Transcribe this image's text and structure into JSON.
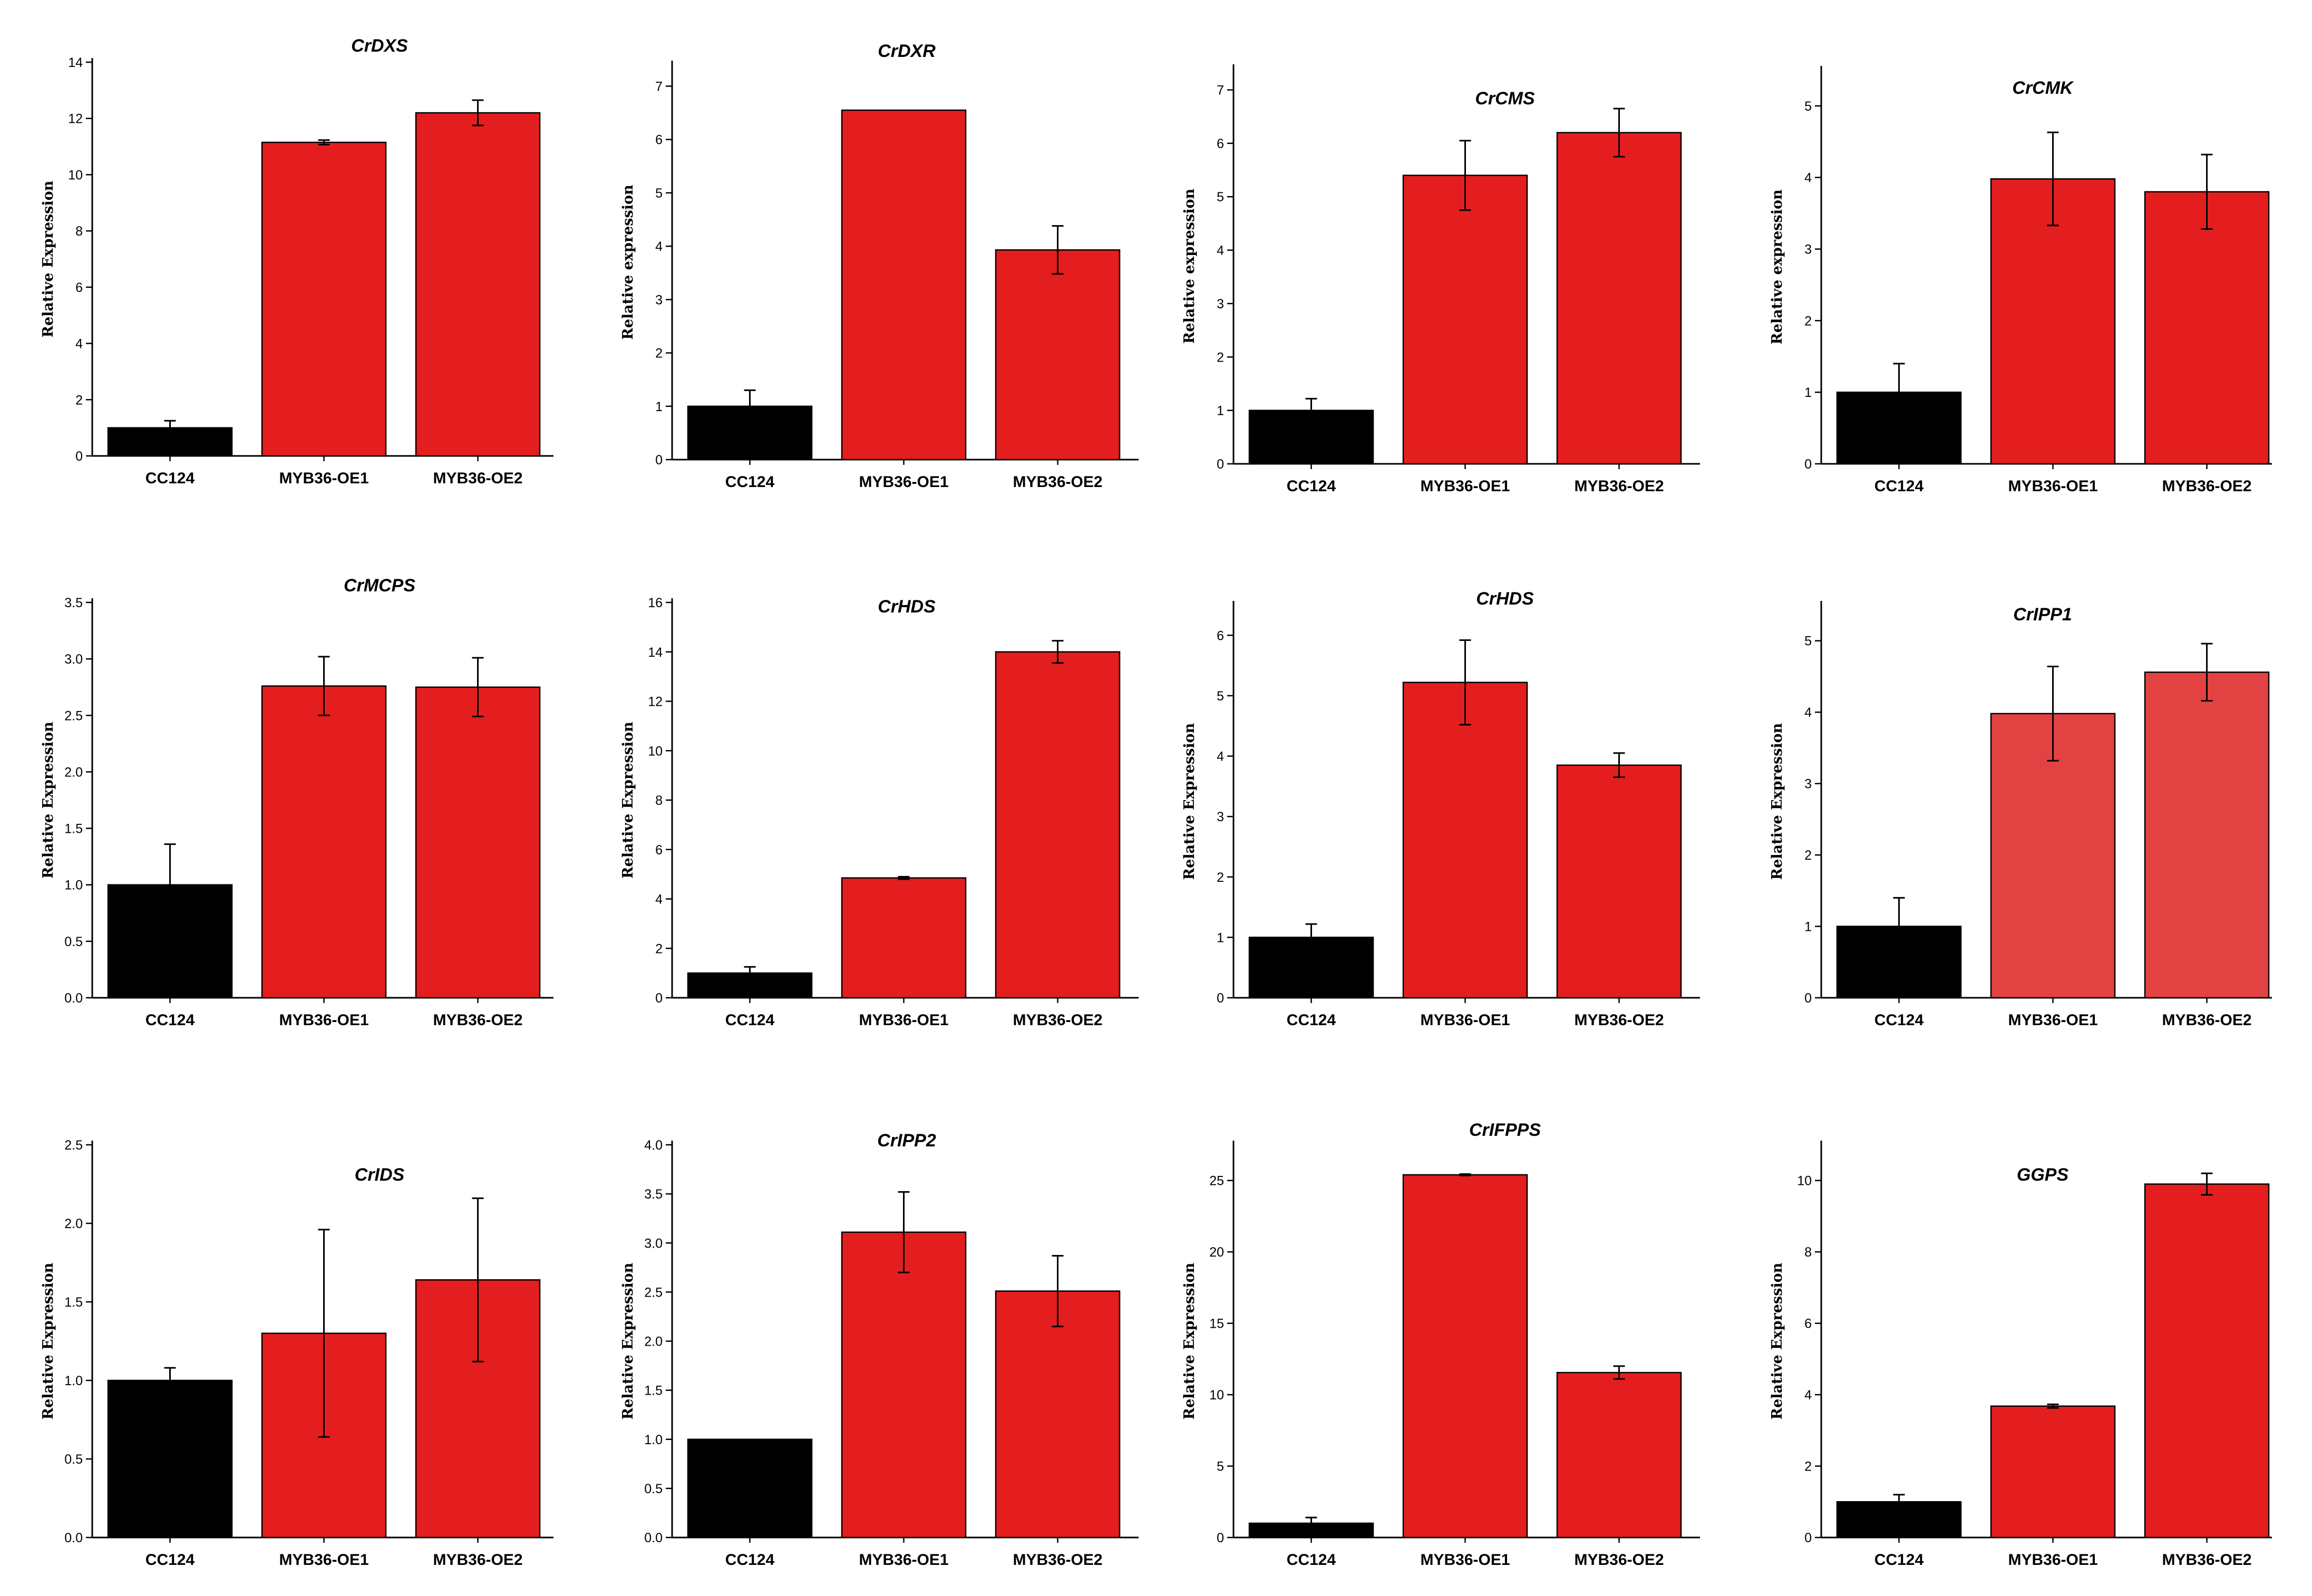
{
  "figure": {
    "bar_colors": {
      "control": "#000000",
      "overexpression": "#e41e1e",
      "overexpression_light": "#e34242"
    },
    "categories": [
      "CC124",
      "MYB36-OE1",
      "MYB36-OE2"
    ]
  },
  "chart_data": [
    {
      "type": "bar",
      "title": "CrDXS",
      "ylabel": "Relative Expression",
      "ylim": [
        0,
        14
      ],
      "yticks": [
        "0",
        "2",
        "4",
        "6",
        "8",
        "10",
        "12",
        "14"
      ],
      "tick_values": [
        0,
        2,
        4,
        6,
        8,
        10,
        12,
        14
      ],
      "categories": [
        "CC124",
        "MYB36-OE1",
        "MYB36-OE2"
      ],
      "values": [
        1.0,
        11.15,
        12.2
      ],
      "errors": [
        0.25,
        0.08,
        0.45
      ],
      "light": false
    },
    {
      "type": "bar",
      "title": "CrDXR",
      "ylabel": "Relative expression",
      "ylim": [
        0,
        7.4
      ],
      "yticks": [
        "0",
        "1",
        "2",
        "3",
        "4",
        "5",
        "6",
        "7"
      ],
      "tick_values": [
        0,
        1,
        2,
        3,
        4,
        5,
        6,
        7
      ],
      "categories": [
        "CC124",
        "MYB36-OE1",
        "MYB36-OE2"
      ],
      "values": [
        1.0,
        6.55,
        3.93
      ],
      "errors": [
        0.3,
        0.0,
        0.45
      ],
      "light": false
    },
    {
      "type": "bar",
      "title": "CrCMS",
      "ylabel": "Relative expression",
      "ylim": [
        0,
        7.4
      ],
      "yticks": [
        "0",
        "1",
        "2",
        "3",
        "4",
        "5",
        "6",
        "7"
      ],
      "tick_values": [
        0,
        1,
        2,
        3,
        4,
        5,
        6,
        7
      ],
      "categories": [
        "CC124",
        "MYB36-OE1",
        "MYB36-OE2"
      ],
      "values": [
        1.0,
        5.4,
        6.2
      ],
      "errors": [
        0.22,
        0.65,
        0.45
      ],
      "light": false
    },
    {
      "type": "bar",
      "title": "CrCMK",
      "ylabel": "Relative expression",
      "ylim": [
        0,
        5.5
      ],
      "yticks": [
        "0",
        "1",
        "2",
        "3",
        "4",
        "5"
      ],
      "tick_values": [
        0,
        1,
        2,
        3,
        4,
        5
      ],
      "categories": [
        "CC124",
        "MYB36-OE1",
        "MYB36-OE2"
      ],
      "values": [
        1.0,
        3.98,
        3.8
      ],
      "errors": [
        0.4,
        0.65,
        0.52
      ],
      "light": false
    },
    {
      "type": "bar",
      "title": "CrMCPS",
      "ylabel": "Relative Expression",
      "ylim": [
        0,
        3.5
      ],
      "yticks": [
        "0.0",
        "0.5",
        "1.0",
        "1.5",
        "2.0",
        "2.5",
        "3.0",
        "3.5"
      ],
      "tick_values": [
        0,
        0.5,
        1,
        1.5,
        2,
        2.5,
        3,
        3.5
      ],
      "categories": [
        "CC124",
        "MYB36-OE1",
        "MYB36-OE2"
      ],
      "values": [
        1.0,
        2.76,
        2.75
      ],
      "errors": [
        0.36,
        0.26,
        0.26
      ],
      "light": false
    },
    {
      "type": "bar",
      "title": "CrHDS",
      "ylabel": "Relative Expression",
      "ylim": [
        0,
        16
      ],
      "yticks": [
        "0",
        "2",
        "4",
        "6",
        "8",
        "10",
        "12",
        "14",
        "16"
      ],
      "tick_values": [
        0,
        2,
        4,
        6,
        8,
        10,
        12,
        14,
        16
      ],
      "categories": [
        "CC124",
        "MYB36-OE1",
        "MYB36-OE2"
      ],
      "values": [
        1.0,
        4.85,
        14.0
      ],
      "errors": [
        0.25,
        0.05,
        0.45
      ],
      "light": false
    },
    {
      "type": "bar",
      "title": "CrHDS",
      "ylabel": "Relative Expression",
      "ylim": [
        0,
        6.5
      ],
      "yticks": [
        "0",
        "1",
        "2",
        "3",
        "4",
        "5",
        "6"
      ],
      "tick_values": [
        0,
        1,
        2,
        3,
        4,
        5,
        6
      ],
      "categories": [
        "CC124",
        "MYB36-OE1",
        "MYB36-OE2"
      ],
      "values": [
        1.0,
        5.22,
        3.85
      ],
      "errors": [
        0.22,
        0.7,
        0.2
      ],
      "light": false
    },
    {
      "type": "bar",
      "title": "CrIPP1",
      "ylabel": "Relative Expression",
      "ylim": [
        0,
        5.5
      ],
      "yticks": [
        "0",
        "1",
        "2",
        "3",
        "4",
        "5"
      ],
      "tick_values": [
        0,
        1,
        2,
        3,
        4,
        5
      ],
      "categories": [
        "CC124",
        "MYB36-OE1",
        "MYB36-OE2"
      ],
      "values": [
        1.0,
        3.98,
        4.56
      ],
      "errors": [
        0.4,
        0.66,
        0.4
      ],
      "light": true
    },
    {
      "type": "bar",
      "title": "CrIDS",
      "ylabel": "Relative Expression",
      "ylim": [
        0,
        2.5
      ],
      "yticks": [
        "0.0",
        "0.5",
        "1.0",
        "1.5",
        "2.0",
        "2.5"
      ],
      "tick_values": [
        0,
        0.5,
        1,
        1.5,
        2,
        2.5
      ],
      "categories": [
        "CC124",
        "MYB36-OE1",
        "MYB36-OE2"
      ],
      "values": [
        1.0,
        1.3,
        1.64
      ],
      "errors": [
        0.08,
        0.66,
        0.52
      ],
      "light": false
    },
    {
      "type": "bar",
      "title": "CrIPP2",
      "ylabel": "Relative Expression",
      "ylim": [
        0,
        4.0
      ],
      "yticks": [
        "0.0",
        "0.5",
        "1.0",
        "1.5",
        "2.0",
        "2.5",
        "3.0",
        "3.5",
        "4.0"
      ],
      "tick_values": [
        0,
        0.5,
        1,
        1.5,
        2,
        2.5,
        3,
        3.5,
        4
      ],
      "categories": [
        "CC124",
        "MYB36-OE1",
        "MYB36-OE2"
      ],
      "values": [
        1.0,
        3.11,
        2.51
      ],
      "errors": [
        0.0,
        0.41,
        0.36
      ],
      "light": false
    },
    {
      "type": "bar",
      "title": "CrIFPPS",
      "ylabel": "Relative Expression",
      "ylim": [
        0,
        27.5
      ],
      "yticks": [
        "0",
        "5",
        "10",
        "15",
        "20",
        "25"
      ],
      "tick_values": [
        0,
        5,
        10,
        15,
        20,
        25
      ],
      "categories": [
        "CC124",
        "MYB36-OE1",
        "MYB36-OE2"
      ],
      "values": [
        1.0,
        25.4,
        11.55
      ],
      "errors": [
        0.4,
        0.05,
        0.45
      ],
      "light": false
    },
    {
      "type": "bar",
      "title": "GGPS",
      "ylabel": "Relative Expression",
      "ylim": [
        0,
        11
      ],
      "yticks": [
        "0",
        "2",
        "4",
        "6",
        "8",
        "10"
      ],
      "tick_values": [
        0,
        2,
        4,
        6,
        8,
        10
      ],
      "categories": [
        "CC124",
        "MYB36-OE1",
        "MYB36-OE2"
      ],
      "values": [
        1.0,
        3.68,
        9.9
      ],
      "errors": [
        0.2,
        0.05,
        0.3
      ],
      "light": false
    }
  ]
}
